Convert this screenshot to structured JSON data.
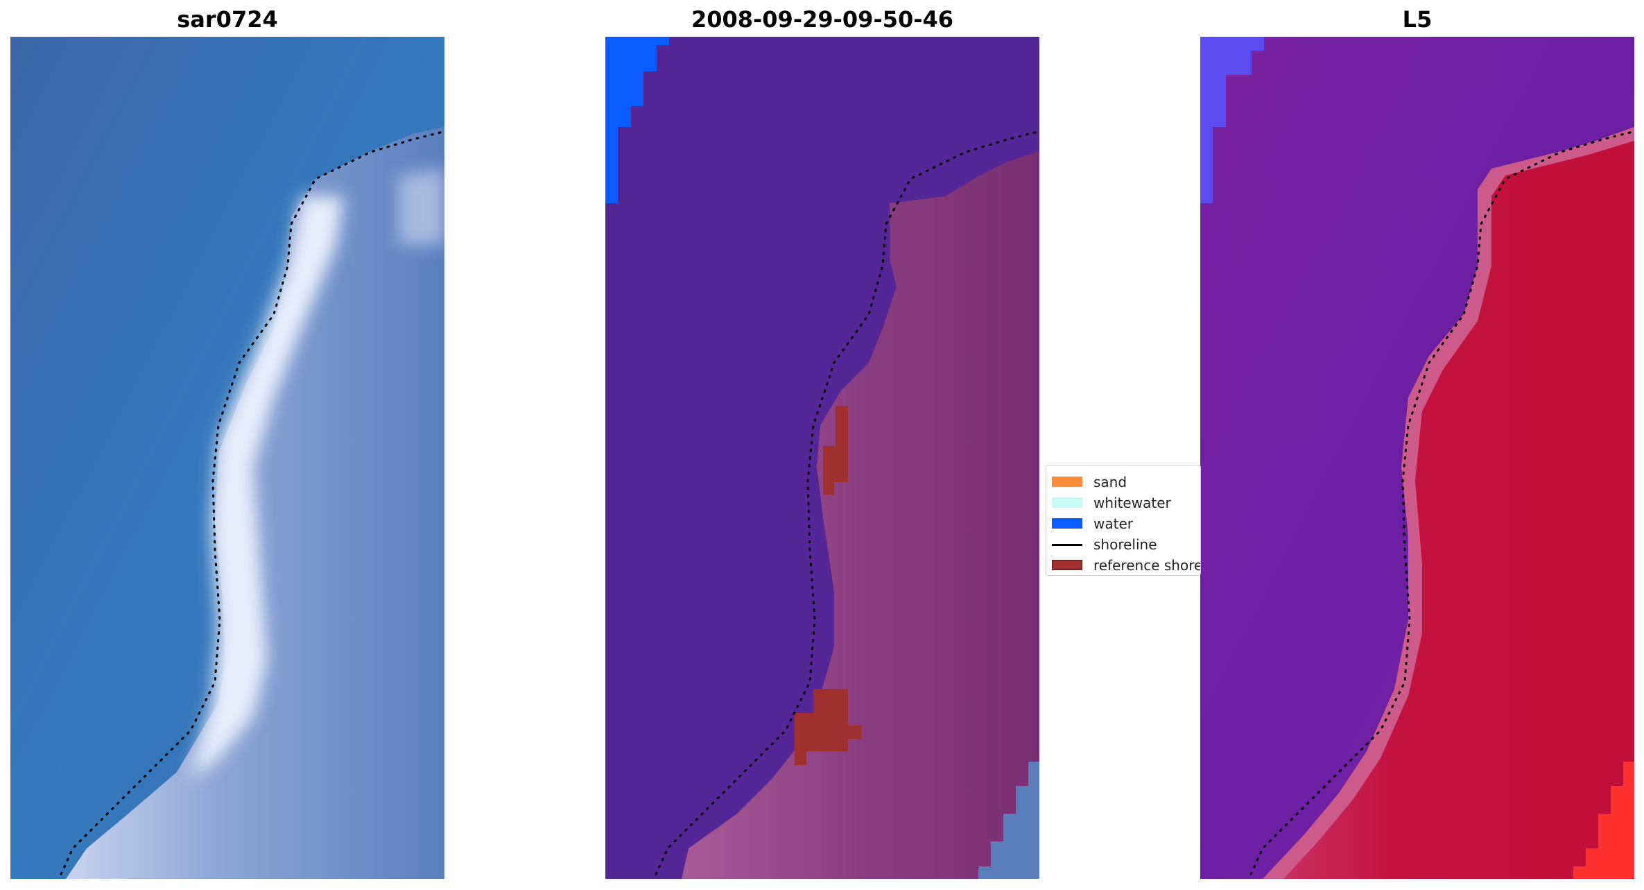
{
  "panels": [
    {
      "title": "sar0724",
      "kind": "rgb"
    },
    {
      "title": "2008-09-29-09-50-46",
      "kind": "classified"
    },
    {
      "title": "L5",
      "kind": "index"
    }
  ],
  "legend": {
    "items": [
      {
        "label": "sand",
        "color": "#ff8c3a",
        "type": "patch"
      },
      {
        "label": "whitewater",
        "color": "#c9fbf6",
        "type": "patch"
      },
      {
        "label": "water",
        "color": "#0a5cff",
        "type": "patch"
      },
      {
        "label": "shoreline",
        "color": "#000000",
        "type": "line"
      },
      {
        "label": "reference shoreline",
        "color": "#a03030",
        "type": "patch"
      }
    ]
  },
  "colors": {
    "water_rgb": "#3a6fb8",
    "land_rgb": "#5a84c4",
    "beach_rgb": "#dfe6f4",
    "water_class": "#542698",
    "land_class": "#8a3a85",
    "water_index": "#6a1e9e",
    "land_index": "#c3123a",
    "shoreline": "#000000"
  }
}
